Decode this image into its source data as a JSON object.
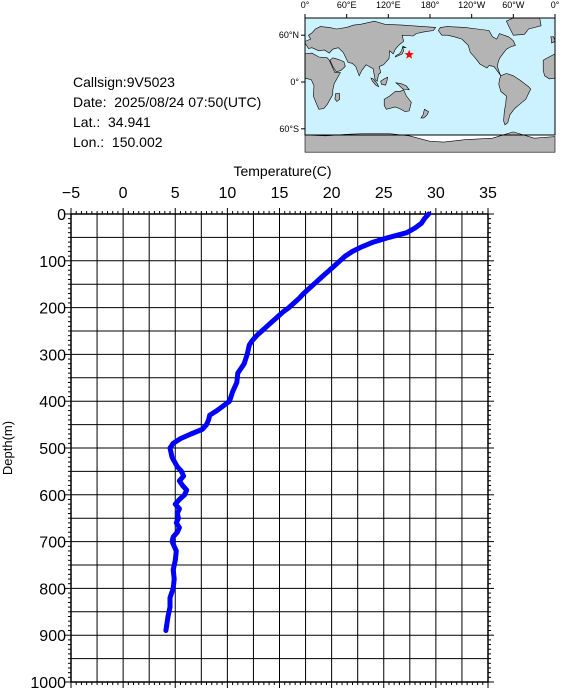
{
  "info": {
    "callsign": "Callsign:9V5023",
    "date": "Date:  2025/08/24 07:50(UTC)",
    "lat": "Lat.:  34.941",
    "lon": "Lon.:  150.002"
  },
  "map": {
    "lon_labels": [
      "0°",
      "60°E",
      "120°E",
      "180°",
      "120°W",
      "60°W",
      "0°"
    ],
    "lat_labels": [
      "60°N",
      "0°",
      "60°S"
    ],
    "marker": {
      "lat": 34.941,
      "lon": 150.002
    },
    "colors": {
      "ocean": "#ccf2ff",
      "land": "#b4b4b4",
      "marker": "#ff0000"
    }
  },
  "chart_data": {
    "type": "line",
    "title": "",
    "xlabel": "Temperature(C)",
    "ylabel": "Depth(m)",
    "xlim": [
      -5,
      35
    ],
    "ylim": [
      0,
      1000
    ],
    "y_inverted": true,
    "x_ticks": [
      -5,
      0,
      5,
      10,
      15,
      20,
      25,
      30,
      35
    ],
    "y_ticks": [
      0,
      100,
      200,
      300,
      400,
      500,
      600,
      700,
      800,
      900,
      1000
    ],
    "grid": true,
    "line_color": "#0000ff",
    "series": [
      {
        "x": [
          29.3,
          28.9,
          28.6,
          28.0,
          27.2,
          25.5,
          24.0,
          22.9,
          22.0,
          21.3,
          20.8,
          20.3,
          19.8,
          19.3,
          18.8,
          18.3,
          17.8,
          17.3,
          16.9,
          16.4,
          15.9,
          15.3,
          14.8,
          14.3,
          13.8,
          13.3,
          12.8,
          12.4,
          12.1,
          11.9,
          11.6,
          11.0,
          10.9,
          10.5,
          10.2,
          9.0,
          8.3,
          8.2,
          8.0,
          7.6,
          6.5,
          5.5,
          4.8,
          4.5,
          4.7,
          5.2,
          5.6,
          5.8,
          5.4,
          5.7,
          6.1,
          5.9,
          5.4,
          5.0,
          5.4,
          5.2,
          5.3,
          5.1,
          5.4,
          5.2,
          4.8,
          4.7,
          5.1,
          5.0,
          4.8,
          4.9,
          4.8,
          4.5,
          4.5,
          4.3,
          4.1
        ],
        "y": [
          0,
          10,
          20,
          30,
          40,
          50,
          60,
          70,
          80,
          90,
          100,
          110,
          120,
          130,
          140,
          150,
          160,
          170,
          180,
          190,
          200,
          210,
          220,
          230,
          240,
          250,
          260,
          270,
          280,
          300,
          320,
          340,
          360,
          380,
          400,
          420,
          430,
          440,
          450,
          460,
          470,
          480,
          490,
          500,
          520,
          540,
          550,
          560,
          570,
          580,
          590,
          600,
          610,
          620,
          630,
          640,
          650,
          660,
          670,
          680,
          690,
          700,
          720,
          740,
          760,
          780,
          800,
          820,
          840,
          860,
          890
        ]
      }
    ]
  }
}
